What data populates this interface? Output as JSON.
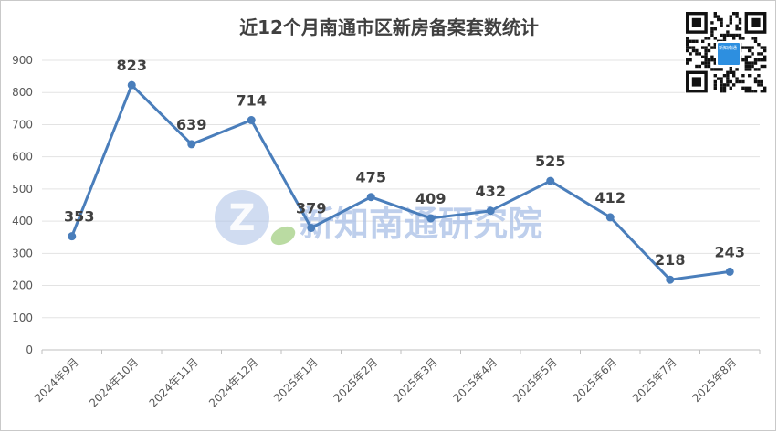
{
  "chart_data": {
    "type": "line",
    "title": "近12个月南通市区新房备案套数统计",
    "categories": [
      "2024年9月",
      "2024年10月",
      "2024年11月",
      "2024年12月",
      "2025年1月",
      "2025年2月",
      "2025年3月",
      "2025年4月",
      "2025年5月",
      "2025年6月",
      "2025年7月",
      "2025年8月"
    ],
    "series": [
      {
        "values": [
          353,
          823,
          639,
          714,
          379,
          475,
          409,
          432,
          525,
          412,
          218,
          243
        ]
      }
    ],
    "ylim": [
      0,
      900
    ],
    "yticks": [
      0,
      100,
      200,
      300,
      400,
      500,
      600,
      700,
      800,
      900
    ],
    "grid": true,
    "line_color": "#4a7ebb",
    "data_labels": true
  },
  "watermark": {
    "text": "新知南通研究院",
    "logo_letter": "Z"
  },
  "qr_badge": {
    "text": "新知南通"
  }
}
